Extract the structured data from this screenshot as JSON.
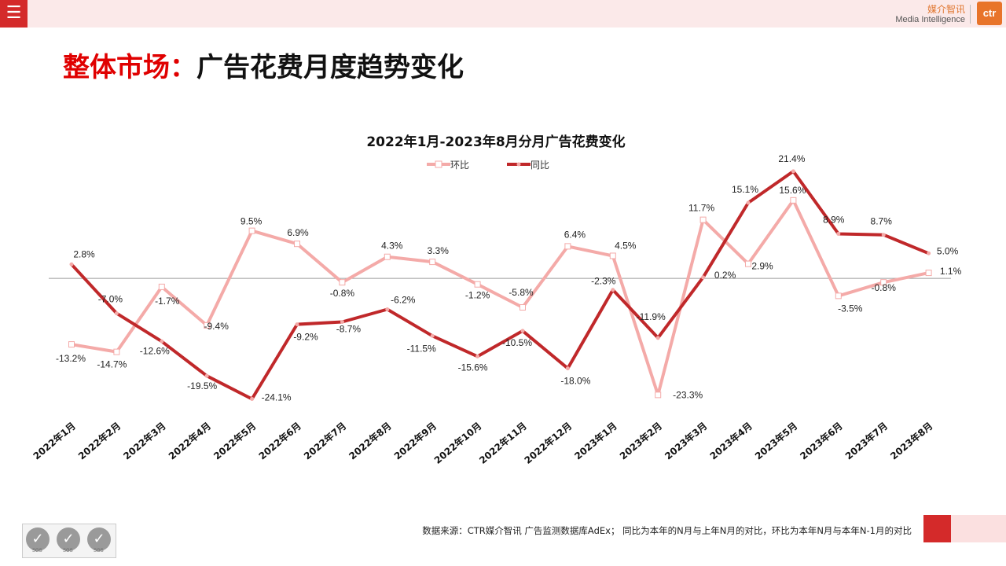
{
  "header": {
    "brand_cn": "媒介智讯",
    "brand_en": "Media Intelligence",
    "brand_logo": "ctr",
    "menu_icon": "menu-icon"
  },
  "page": {
    "title_red": "整体市场：",
    "title_black": "广告花费月度趋势变化"
  },
  "footer": {
    "source_note": "数据来源：CTR媒介智讯 广告监测数据库AdEx； 同比为本年的N月与上年N月的对比，环比为本年N月与本年N-1月的对比",
    "badges": [
      "SGS",
      "SGS",
      "SGS"
    ]
  },
  "chart_data": {
    "type": "line",
    "title": "2022年1月-2023年8月分月广告花费变化",
    "legend_position": "top",
    "categories": [
      "2022年1月",
      "2022年2月",
      "2022年3月",
      "2022年4月",
      "2022年5月",
      "2022年6月",
      "2022年7月",
      "2022年8月",
      "2022年9月",
      "2022年10月",
      "2022年11月",
      "2022年12月",
      "2023年1月",
      "2023年2月",
      "2023年3月",
      "2023年4月",
      "2023年5月",
      "2023年6月",
      "2023年7月",
      "2023年8月"
    ],
    "series": [
      {
        "name": "环比",
        "color": "#f4aaa8",
        "values": [
          -13.2,
          -14.7,
          -1.7,
          -9.4,
          9.5,
          6.9,
          -0.8,
          4.3,
          3.3,
          -1.2,
          -5.8,
          6.4,
          4.5,
          -23.3,
          11.7,
          2.9,
          15.6,
          -3.5,
          -0.8,
          1.1
        ],
        "labels": [
          "-13.2%",
          "-14.7%",
          "-1.7%",
          "-9.4%",
          "9.5%",
          "6.9%",
          "-0.8%",
          "4.3%",
          "3.3%",
          "-1.2%",
          "-5.8%",
          "6.4%",
          "4.5%",
          "-23.3%",
          "11.7%",
          "2.9%",
          "15.6%",
          "-3.5%",
          "-0.8%",
          "1.1%"
        ]
      },
      {
        "name": "同比",
        "color": "#c0282a",
        "values": [
          2.8,
          -7.0,
          -12.6,
          -19.5,
          -24.1,
          -9.2,
          -8.7,
          -6.2,
          -11.5,
          -15.6,
          -10.5,
          -18.0,
          -2.3,
          -11.9,
          0.2,
          15.1,
          21.4,
          8.9,
          8.7,
          5.0
        ],
        "labels": [
          "2.8%",
          "-7.0%",
          "-12.6%",
          "-19.5%",
          "-24.1%",
          "-9.2%",
          "-8.7%",
          "-6.2%",
          "-11.5%",
          "-15.6%",
          "-10.5%",
          "-18.0%",
          "-2.3%",
          "-11.9%",
          "0.2%",
          "15.1%",
          "21.4%",
          "8.9%",
          "8.7%",
          "5.0%"
        ]
      }
    ],
    "ylim": [
      -30,
      25
    ],
    "grid": false,
    "zero_line": true
  }
}
